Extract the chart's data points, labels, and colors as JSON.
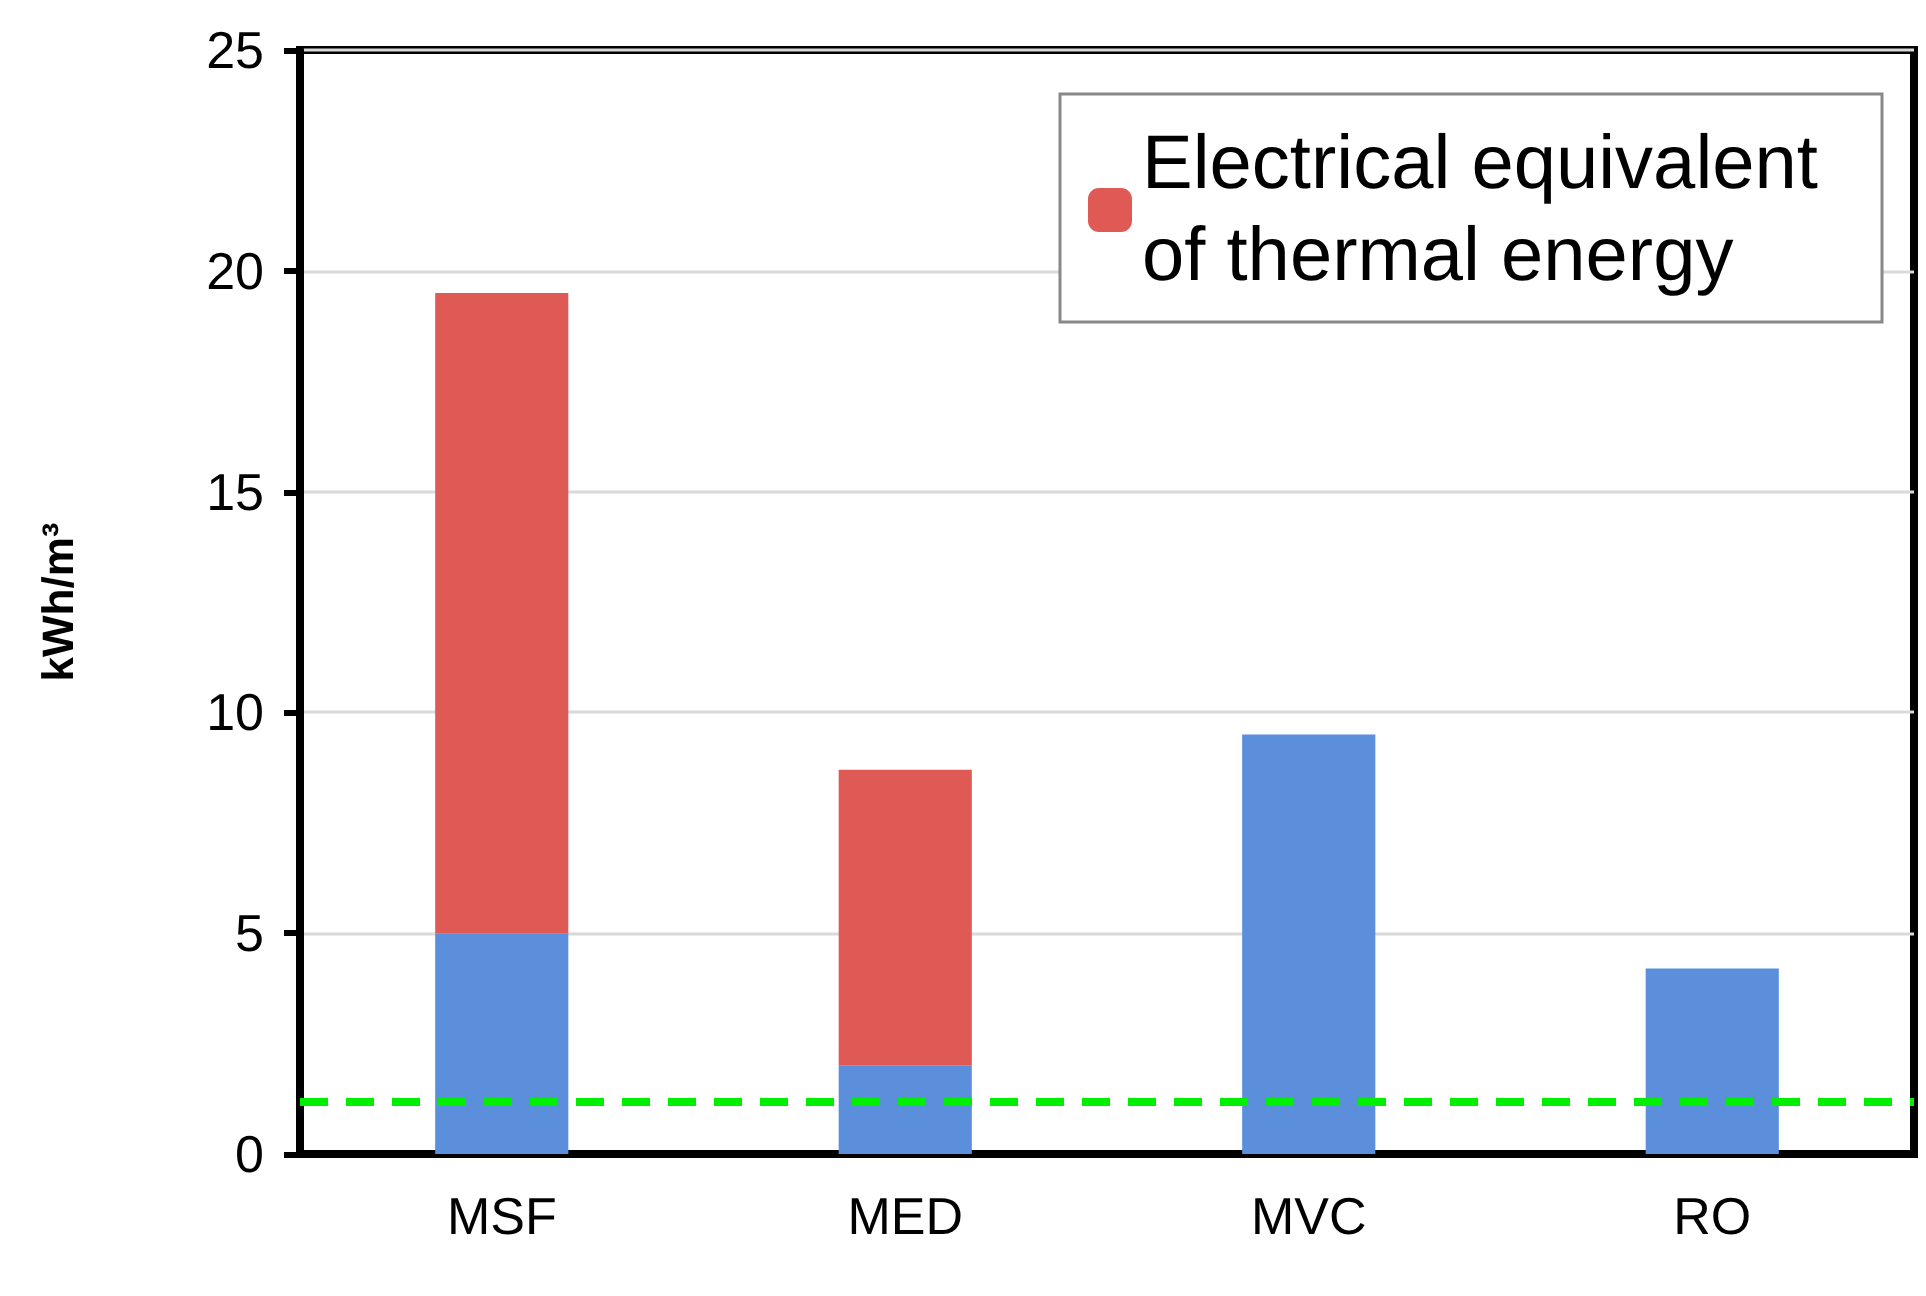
{
  "chart_data": {
    "type": "bar",
    "stacked": true,
    "ylabel": "kWh/m³",
    "categories": [
      "MSF",
      "MED",
      "MVC",
      "RO"
    ],
    "series": [
      {
        "color": "#5b8fdc",
        "values": [
          5,
          2,
          9.5,
          4.2
        ]
      },
      {
        "name": "Electrical equivalent of thermal energy",
        "color": "#e05a55",
        "values": [
          14.5,
          6.7,
          null,
          null
        ]
      }
    ],
    "ylim": [
      0,
      25
    ],
    "yticks": [
      0,
      5,
      10,
      15,
      20,
      25
    ],
    "grid": "y",
    "legend": "top right",
    "ref_lines": [
      {
        "axis": "y",
        "value": 1.2,
        "color": "#00ee00",
        "line_style": "dashed"
      }
    ]
  }
}
